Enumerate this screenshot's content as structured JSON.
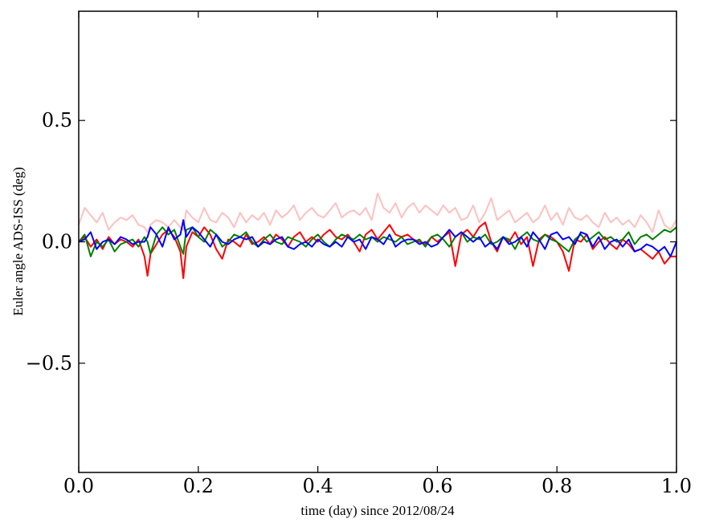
{
  "chart_data": {
    "type": "line",
    "title": "",
    "xlabel": "time (day) since 2012/08/24",
    "ylabel": "Euler angle ADS-ISS (deg)",
    "xlim": [
      0.0,
      1.0
    ],
    "ylim": [
      -0.95,
      0.95
    ],
    "x_ticks": [
      0.0,
      0.2,
      0.4,
      0.6,
      0.8,
      1.0
    ],
    "x_tick_labels": [
      "0.0",
      "0.2",
      "0.4",
      "0.6",
      "0.8",
      "1.0"
    ],
    "y_ticks": [
      -0.5,
      0.0,
      0.5
    ],
    "y_tick_labels": [
      "−0.5",
      "0.0",
      "0.5"
    ],
    "grid": false,
    "legend": "none",
    "x": [
      0.0,
      0.01,
      0.02,
      0.03,
      0.04,
      0.05,
      0.06,
      0.07,
      0.08,
      0.09,
      0.1,
      0.11,
      0.115,
      0.12,
      0.13,
      0.14,
      0.15,
      0.16,
      0.17,
      0.175,
      0.18,
      0.19,
      0.2,
      0.21,
      0.22,
      0.23,
      0.24,
      0.25,
      0.26,
      0.27,
      0.28,
      0.29,
      0.3,
      0.31,
      0.32,
      0.33,
      0.34,
      0.35,
      0.36,
      0.37,
      0.38,
      0.39,
      0.4,
      0.41,
      0.42,
      0.43,
      0.44,
      0.45,
      0.46,
      0.47,
      0.48,
      0.49,
      0.5,
      0.51,
      0.52,
      0.53,
      0.54,
      0.55,
      0.56,
      0.57,
      0.58,
      0.59,
      0.6,
      0.61,
      0.62,
      0.63,
      0.64,
      0.65,
      0.66,
      0.67,
      0.68,
      0.69,
      0.7,
      0.71,
      0.72,
      0.73,
      0.74,
      0.75,
      0.76,
      0.77,
      0.78,
      0.79,
      0.8,
      0.81,
      0.82,
      0.83,
      0.84,
      0.85,
      0.86,
      0.87,
      0.88,
      0.89,
      0.9,
      0.91,
      0.92,
      0.93,
      0.94,
      0.95,
      0.96,
      0.97,
      0.98,
      0.99,
      1.0
    ],
    "series": [
      {
        "color": "#ffc0c0",
        "values": [
          0.07,
          0.14,
          0.11,
          0.08,
          0.12,
          0.05,
          0.08,
          0.1,
          0.09,
          0.11,
          0.07,
          0.06,
          0.04,
          0.07,
          0.09,
          0.08,
          0.06,
          0.09,
          0.06,
          0.05,
          0.13,
          0.1,
          0.08,
          0.14,
          0.09,
          0.08,
          0.12,
          0.1,
          0.06,
          0.12,
          0.08,
          0.11,
          0.09,
          0.12,
          0.07,
          0.13,
          0.1,
          0.12,
          0.15,
          0.09,
          0.12,
          0.14,
          0.11,
          0.1,
          0.13,
          0.16,
          0.1,
          0.12,
          0.13,
          0.11,
          0.14,
          0.09,
          0.2,
          0.14,
          0.12,
          0.16,
          0.1,
          0.14,
          0.16,
          0.12,
          0.15,
          0.13,
          0.11,
          0.15,
          0.12,
          0.14,
          0.09,
          0.1,
          0.15,
          0.08,
          0.12,
          0.18,
          0.09,
          0.11,
          0.13,
          0.08,
          0.1,
          0.12,
          0.08,
          0.1,
          0.15,
          0.09,
          0.12,
          0.07,
          0.14,
          0.1,
          0.09,
          0.11,
          0.08,
          0.06,
          0.12,
          0.08,
          0.1,
          0.07,
          0.09,
          0.06,
          0.11,
          0.08,
          0.04,
          0.13,
          0.07,
          0.05,
          0.09
        ]
      },
      {
        "color": "#ff0000",
        "values": [
          0.0,
          0.02,
          -0.02,
          0.01,
          -0.03,
          0.02,
          -0.01,
          0.01,
          0.0,
          -0.02,
          0.01,
          -0.06,
          -0.14,
          -0.05,
          -0.01,
          0.03,
          0.05,
          0.02,
          -0.04,
          -0.15,
          -0.02,
          0.04,
          0.02,
          0.06,
          0.03,
          -0.03,
          -0.07,
          0.01,
          0.0,
          -0.02,
          0.03,
          -0.01,
          0.0,
          0.02,
          -0.01,
          0.03,
          0.01,
          -0.02,
          0.02,
          0.04,
          0.0,
          0.02,
          0.0,
          0.03,
          0.05,
          0.02,
          0.01,
          0.03,
          0.0,
          -0.04,
          0.03,
          0.05,
          0.01,
          0.04,
          0.07,
          0.03,
          0.02,
          0.03,
          0.01,
          0.0,
          -0.01,
          0.02,
          0.0,
          0.02,
          0.04,
          -0.1,
          0.03,
          0.05,
          0.02,
          0.06,
          0.08,
          0.0,
          -0.04,
          0.02,
          0.0,
          0.04,
          -0.01,
          0.02,
          -0.1,
          0.01,
          0.03,
          0.02,
          0.0,
          -0.04,
          -0.12,
          0.01,
          0.0,
          0.03,
          -0.03,
          0.0,
          0.02,
          -0.01,
          -0.03,
          0.01,
          -0.01,
          -0.04,
          -0.03,
          -0.05,
          -0.07,
          -0.04,
          -0.09,
          -0.06,
          -0.06
        ]
      },
      {
        "color": "#008000",
        "values": [
          0.0,
          0.03,
          -0.06,
          0.0,
          -0.02,
          0.01,
          -0.04,
          -0.01,
          0.0,
          0.01,
          -0.02,
          0.02,
          0.0,
          -0.05,
          0.03,
          0.06,
          0.03,
          0.05,
          -0.02,
          -0.05,
          0.05,
          0.06,
          0.02,
          0.0,
          0.05,
          0.03,
          -0.02,
          0.0,
          0.03,
          0.02,
          0.04,
          0.0,
          -0.02,
          0.01,
          0.03,
          0.0,
          -0.01,
          0.02,
          0.01,
          0.0,
          -0.02,
          0.01,
          0.03,
          0.0,
          -0.02,
          0.01,
          0.03,
          0.02,
          0.01,
          0.03,
          0.01,
          0.02,
          0.0,
          0.02,
          0.01,
          0.0,
          0.02,
          -0.01,
          0.0,
          0.01,
          -0.02,
          0.02,
          0.03,
          0.01,
          -0.02,
          0.02,
          0.04,
          0.0,
          0.02,
          0.01,
          0.03,
          -0.01,
          0.0,
          0.02,
          0.01,
          -0.03,
          0.02,
          0.04,
          0.01,
          0.0,
          0.03,
          0.01,
          0.0,
          -0.02,
          -0.04,
          0.01,
          0.03,
          0.0,
          0.02,
          0.04,
          0.01,
          0.02,
          0.0,
          0.01,
          0.04,
          -0.01,
          0.02,
          0.03,
          0.01,
          0.03,
          0.05,
          0.04,
          0.06
        ]
      },
      {
        "color": "#0000ff",
        "values": [
          0.0,
          0.01,
          0.04,
          -0.03,
          0.0,
          0.01,
          -0.01,
          0.02,
          0.01,
          -0.01,
          0.0,
          0.0,
          0.02,
          0.06,
          0.03,
          -0.02,
          0.06,
          0.01,
          0.03,
          0.09,
          0.02,
          0.06,
          0.04,
          0.01,
          -0.02,
          0.03,
          0.0,
          -0.01,
          0.01,
          0.02,
          0.01,
          0.02,
          -0.02,
          0.0,
          -0.01,
          0.01,
          0.02,
          -0.02,
          -0.03,
          -0.01,
          0.0,
          -0.02,
          0.01,
          -0.01,
          -0.02,
          0.0,
          -0.02,
          0.02,
          0.0,
          0.01,
          -0.03,
          0.02,
          0.01,
          -0.01,
          0.03,
          -0.02,
          0.0,
          0.01,
          0.01,
          -0.01,
          0.0,
          -0.02,
          -0.01,
          0.02,
          0.05,
          0.02,
          0.04,
          0.02,
          0.0,
          0.02,
          -0.02,
          0.0,
          -0.03,
          0.02,
          -0.01,
          0.0,
          0.02,
          -0.02,
          0.04,
          0.01,
          -0.03,
          0.03,
          0.04,
          0.01,
          0.02,
          -0.01,
          0.04,
          0.03,
          -0.02,
          0.02,
          -0.03,
          0.0,
          0.01,
          -0.02,
          0.01,
          -0.04,
          -0.03,
          -0.01,
          -0.02,
          -0.04,
          -0.02,
          -0.06,
          0.0
        ]
      }
    ]
  }
}
